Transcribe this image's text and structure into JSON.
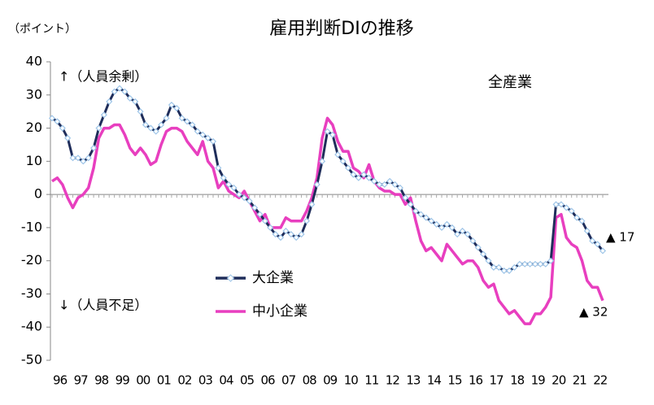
{
  "chart_data": {
    "type": "line",
    "title": "雇用判断DIの推移",
    "y_unit_label": "（ポイント）",
    "annotations": [
      "↑（人員余剰）",
      "↓（人員不足）",
      "全産業",
      "▲ 17",
      "▲ 32"
    ],
    "categories": [
      "96",
      null,
      null,
      null,
      "97",
      null,
      null,
      null,
      "98",
      null,
      null,
      null,
      "99",
      null,
      null,
      null,
      "00",
      null,
      null,
      null,
      "01",
      null,
      null,
      null,
      "02",
      null,
      null,
      null,
      "03",
      null,
      null,
      null,
      "04",
      null,
      null,
      null,
      "05",
      null,
      null,
      null,
      "06",
      null,
      null,
      null,
      "07",
      null,
      null,
      null,
      "08",
      null,
      null,
      null,
      "09",
      null,
      null,
      null,
      "10",
      null,
      null,
      null,
      "11",
      null,
      null,
      null,
      "12",
      null,
      null,
      null,
      "13",
      null,
      null,
      null,
      "14",
      null,
      null,
      null,
      "15",
      null,
      null,
      null,
      "16",
      null,
      null,
      null,
      "17",
      null,
      null,
      null,
      "18",
      null,
      null,
      null,
      "19",
      null,
      null,
      null,
      "20",
      null,
      null,
      null,
      "21",
      null,
      null,
      null,
      "22",
      null,
      null
    ],
    "series": [
      {
        "name": "大企業",
        "color": "#1f2d5a",
        "marker_color": "#9ec5e8",
        "values": [
          23,
          22,
          20,
          17,
          11,
          11,
          10,
          11,
          14,
          20,
          24,
          28,
          31,
          32,
          31,
          29,
          28,
          25,
          21,
          20,
          19,
          21,
          23,
          27,
          26,
          23,
          22,
          21,
          19,
          18,
          17,
          16,
          8,
          5,
          3,
          2,
          0,
          -1,
          -2,
          -4,
          -6,
          -8,
          -10,
          -12,
          -13,
          -11,
          -12,
          -13,
          -12,
          -8,
          -3,
          3,
          10,
          19,
          18,
          12,
          10,
          8,
          6,
          5,
          6,
          5,
          4,
          3,
          3,
          4,
          3,
          2,
          -1,
          -3,
          -5,
          -6,
          -7,
          -8,
          -9,
          -10,
          -9,
          -10,
          -12,
          -11,
          -12,
          -14,
          -16,
          -18,
          -20,
          -22,
          -22,
          -23,
          -23,
          -22,
          -21,
          -21,
          -21,
          -21,
          -21,
          -21,
          -20,
          -3,
          -3,
          -4,
          -5,
          -7,
          -8,
          -11,
          -14,
          -15,
          -17
        ]
      },
      {
        "name": "中小企業",
        "color": "#e83fbf",
        "values": [
          4,
          5,
          3,
          -1,
          -4,
          -1,
          0,
          2,
          8,
          17,
          20,
          20,
          21,
          21,
          18,
          14,
          12,
          14,
          12,
          9,
          10,
          15,
          19,
          20,
          20,
          19,
          16,
          14,
          12,
          16,
          10,
          8,
          2,
          4,
          1,
          0,
          -1,
          1,
          -2,
          -5,
          -8,
          -6,
          -10,
          -10,
          -10,
          -7,
          -8,
          -8,
          -8,
          -5,
          -1,
          5,
          17,
          23,
          21,
          16,
          13,
          13,
          8,
          7,
          5,
          9,
          4,
          2,
          1,
          1,
          0,
          0,
          -3,
          -1,
          -8,
          -14,
          -17,
          -16,
          -18,
          -20,
          -15,
          -17,
          -19,
          -21,
          -20,
          -20,
          -22,
          -26,
          -28,
          -27,
          -32,
          -34,
          -36,
          -35,
          -37,
          -39,
          -39,
          -36,
          -36,
          -34,
          -31,
          -7,
          -6,
          -13,
          -15,
          -16,
          -20,
          -26,
          -28,
          -28,
          -32
        ]
      }
    ],
    "ylim": [
      -50,
      40
    ],
    "yticks": [
      -50,
      -40,
      -30,
      -20,
      -10,
      0,
      10,
      20,
      30,
      40
    ],
    "grid": false
  }
}
